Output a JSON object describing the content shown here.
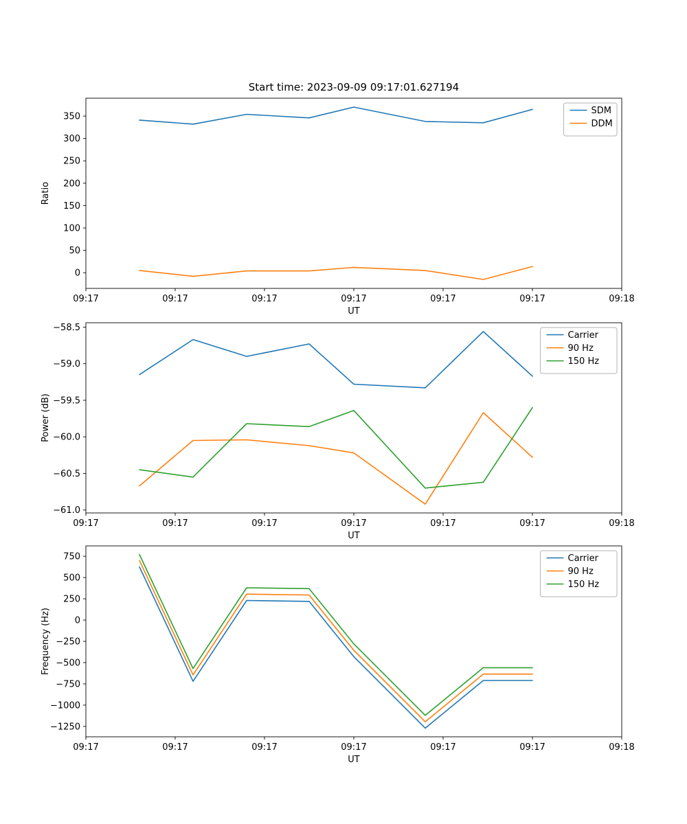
{
  "figure": {
    "title": "Start time: 2023-09-09 09:17:01.627194"
  },
  "chart_data": [
    {
      "type": "line",
      "name": "ratio",
      "title": "Start time: 2023-09-09 09:17:01.627194",
      "xlabel": "UT",
      "ylabel": "Ratio",
      "xlim": [
        0,
        60
      ],
      "ylim": [
        -35,
        390
      ],
      "xticks": [
        0,
        10,
        20,
        30,
        40,
        50,
        60
      ],
      "xtick_labels": [
        "09:17",
        "09:17",
        "09:17",
        "09:17",
        "09:17",
        "09:17",
        "09:18"
      ],
      "yticks": [
        0,
        50,
        100,
        150,
        200,
        250,
        300,
        350
      ],
      "ytick_labels": [
        "0",
        "50",
        "100",
        "150",
        "200",
        "250",
        "300",
        "350"
      ],
      "legend_position": "upper right",
      "grid": false,
      "x": [
        6,
        12,
        18,
        25,
        30,
        38,
        44.5,
        50
      ],
      "series": [
        {
          "name": "SDM",
          "color": "#1f77b4",
          "values": [
            341,
            332,
            354,
            346,
            370,
            338,
            335,
            365
          ]
        },
        {
          "name": "DDM",
          "color": "#ff7f0e",
          "values": [
            5,
            -8,
            4,
            4,
            12,
            5,
            -15,
            14
          ]
        }
      ]
    },
    {
      "type": "line",
      "name": "power",
      "title": "",
      "xlabel": "UT",
      "ylabel": "Power (dB)",
      "xlim": [
        0,
        60
      ],
      "ylim": [
        -61.04,
        -58.44
      ],
      "xticks": [
        0,
        10,
        20,
        30,
        40,
        50,
        60
      ],
      "xtick_labels": [
        "09:17",
        "09:17",
        "09:17",
        "09:17",
        "09:17",
        "09:17",
        "09:18"
      ],
      "yticks": [
        -61.0,
        -60.5,
        -60.0,
        -59.5,
        -59.0,
        -58.5
      ],
      "ytick_labels": [
        "−61.0",
        "−60.5",
        "−60.0",
        "−59.5",
        "−59.0",
        "−58.5"
      ],
      "legend_position": "upper right",
      "grid": false,
      "x": [
        6,
        12,
        18,
        25,
        30,
        38,
        44.5,
        50
      ],
      "series": [
        {
          "name": "Carrier",
          "color": "#1f77b4",
          "values": [
            -59.15,
            -58.67,
            -58.9,
            -58.73,
            -59.28,
            -59.33,
            -58.56,
            -59.17
          ]
        },
        {
          "name": "90 Hz",
          "color": "#ff7f0e",
          "values": [
            -60.67,
            -60.05,
            -60.04,
            -60.12,
            -60.22,
            -60.92,
            -59.67,
            -60.28
          ]
        },
        {
          "name": "150 Hz",
          "color": "#2ca02c",
          "values": [
            -60.45,
            -60.55,
            -59.82,
            -59.86,
            -59.64,
            -60.7,
            -60.62,
            -59.6
          ]
        }
      ]
    },
    {
      "type": "line",
      "name": "frequency",
      "title": "",
      "xlabel": "UT",
      "ylabel": "Frequency (Hz)",
      "xlim": [
        0,
        60
      ],
      "ylim": [
        -1372,
        872
      ],
      "xticks": [
        0,
        10,
        20,
        30,
        40,
        50,
        60
      ],
      "xtick_labels": [
        "09:17",
        "09:17",
        "09:17",
        "09:17",
        "09:17",
        "09:17",
        "09:18"
      ],
      "yticks": [
        -1250,
        -1000,
        -750,
        -500,
        -250,
        0,
        250,
        500,
        750
      ],
      "ytick_labels": [
        "−1250",
        "−1000",
        "−750",
        "−500",
        "−250",
        "0",
        "250",
        "500",
        "750"
      ],
      "legend_position": "upper right",
      "grid": false,
      "x": [
        6,
        12,
        18,
        25,
        30,
        38,
        44.5,
        50
      ],
      "series": [
        {
          "name": "Carrier",
          "color": "#1f77b4",
          "values": [
            625,
            -720,
            230,
            220,
            -430,
            -1270,
            -710,
            -710
          ]
        },
        {
          "name": "90 Hz",
          "color": "#ff7f0e",
          "values": [
            700,
            -645,
            305,
            295,
            -355,
            -1195,
            -635,
            -635
          ]
        },
        {
          "name": "150 Hz",
          "color": "#2ca02c",
          "values": [
            770,
            -570,
            380,
            370,
            -280,
            -1120,
            -560,
            -560
          ]
        }
      ]
    }
  ]
}
